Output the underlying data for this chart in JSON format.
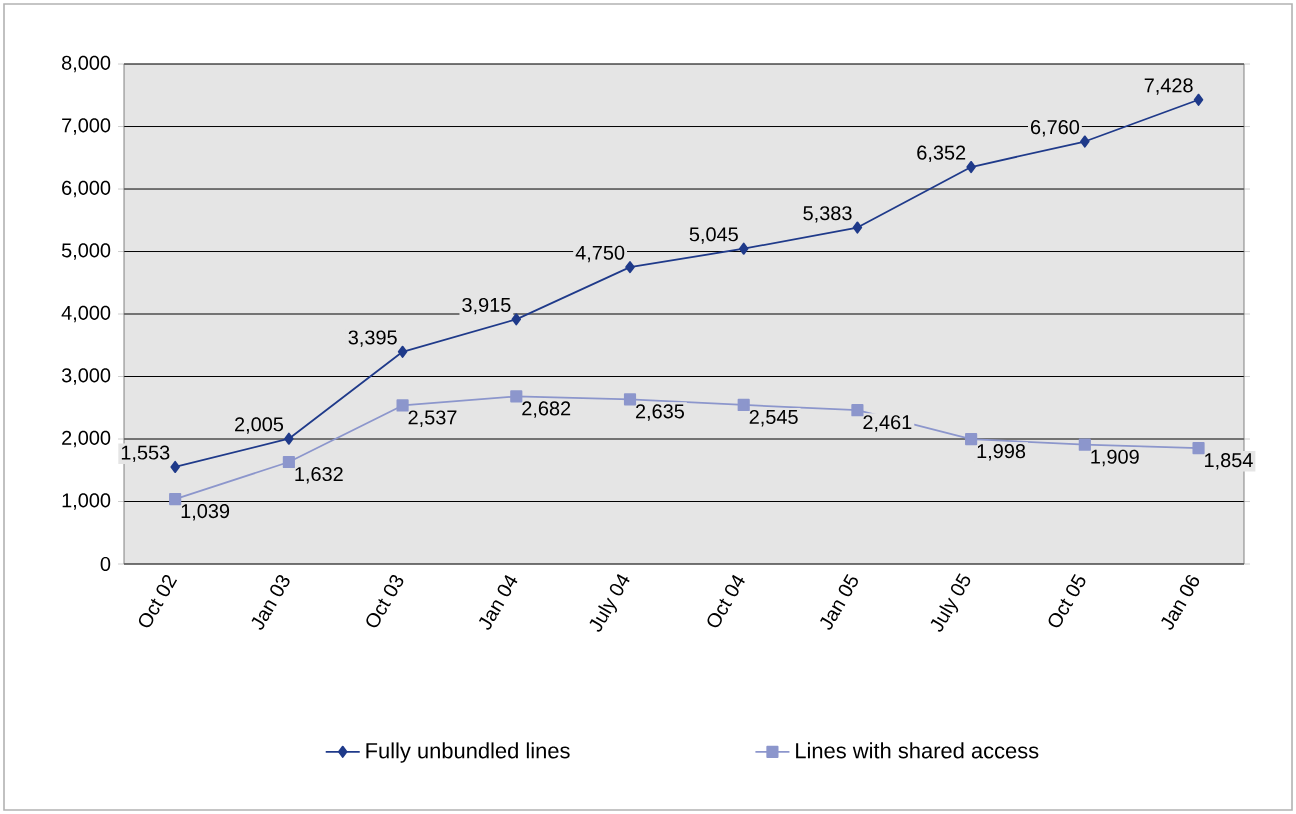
{
  "chart_data": {
    "type": "line",
    "categories": [
      "Oct 02",
      "Jan 03",
      "Oct 03",
      "Jan 04",
      "July 04",
      "Oct 04",
      "Jan 05",
      "July 05",
      "Oct 05",
      "Jan 06"
    ],
    "series": [
      {
        "name": "Fully unbundled lines",
        "color": "#1f3a8a",
        "marker": "diamond",
        "values": [
          1553,
          2005,
          3395,
          3915,
          4750,
          5045,
          5383,
          6352,
          6760,
          7428
        ],
        "value_labels": [
          "1,553",
          "2,005",
          "3,395",
          "3,915",
          "4,750",
          "5,045",
          "5,383",
          "6,352",
          "6,760",
          "7,428"
        ]
      },
      {
        "name": "Lines with shared access",
        "color": "#8c96cc",
        "marker": "square",
        "values": [
          1039,
          1632,
          2537,
          2682,
          2635,
          2545,
          2461,
          1998,
          1909,
          1854
        ],
        "value_labels": [
          "1,039",
          "1,632",
          "2,537",
          "2,682",
          "2,635",
          "2,545",
          "2,461",
          "1,998",
          "1,909",
          "1,854"
        ]
      }
    ],
    "ylim": [
      0,
      8000
    ],
    "yticks": [
      {
        "value": 0,
        "label": "0"
      },
      {
        "value": 1000,
        "label": "1,000"
      },
      {
        "value": 2000,
        "label": "2,000"
      },
      {
        "value": 3000,
        "label": "3,000"
      },
      {
        "value": 4000,
        "label": "4,000"
      },
      {
        "value": 5000,
        "label": "5,000"
      },
      {
        "value": 6000,
        "label": "6,000"
      },
      {
        "value": 7000,
        "label": "7,000"
      },
      {
        "value": 8000,
        "label": "8,000"
      }
    ],
    "grid": "y",
    "legend": "bottom",
    "line_style": "solid"
  }
}
